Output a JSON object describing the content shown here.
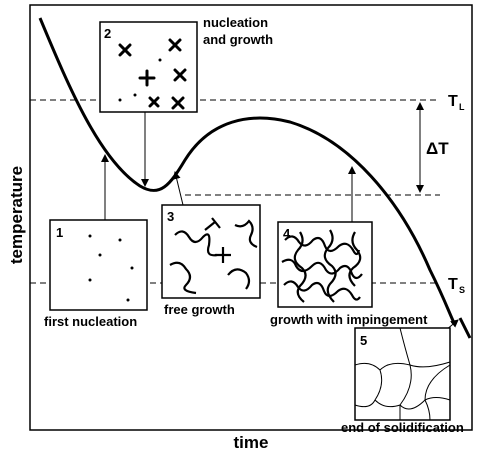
{
  "axes": {
    "y_label": "temperature",
    "x_label": "time"
  },
  "levels": {
    "liquidus": {
      "symbol": "T",
      "sub": "L"
    },
    "solidus": {
      "symbol": "T",
      "sub": "S"
    },
    "undercooling": "ΔT"
  },
  "stages": [
    {
      "number": "1",
      "label": "first nucleation"
    },
    {
      "number": "2",
      "label": [
        "nucleation",
        "and growth"
      ]
    },
    {
      "number": "3",
      "label": "free growth"
    },
    {
      "number": "4",
      "label": "growth with impingement"
    },
    {
      "number": "5",
      "label": "end of solidification"
    }
  ]
}
